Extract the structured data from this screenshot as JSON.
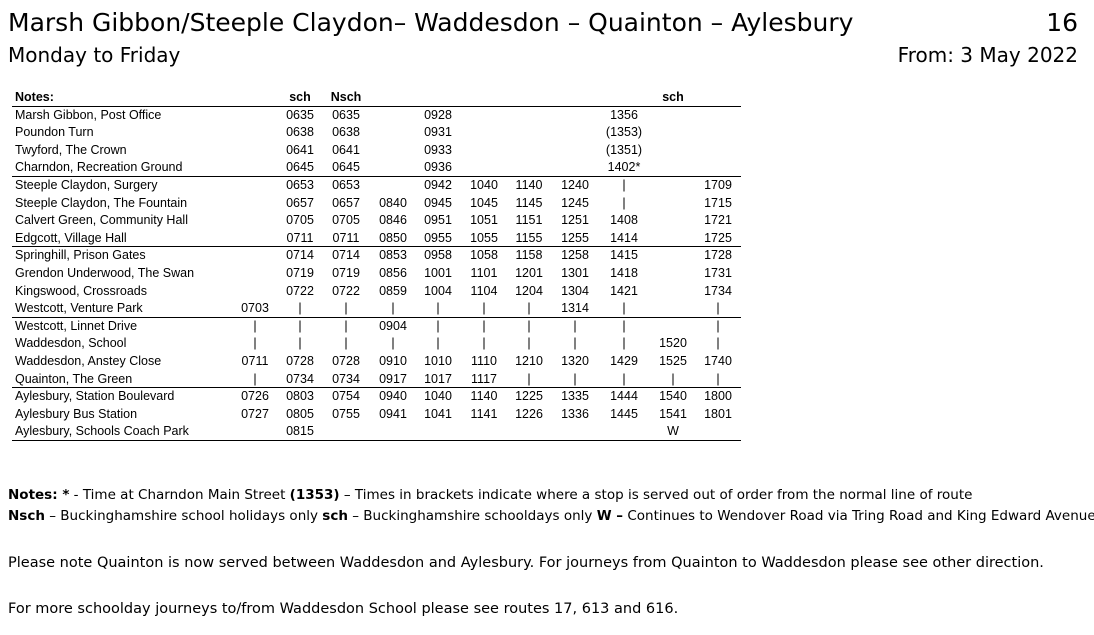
{
  "header": {
    "title": "Marsh Gibbon/Steeple Claydon– Waddesdon – Quainton – Aylesbury",
    "route": "16",
    "days": "Monday to Friday",
    "from": "From: 3 May 2022"
  },
  "table": {
    "notes_label": "Notes:",
    "column_notes": [
      null,
      "sch",
      "Nsch",
      null,
      null,
      null,
      null,
      null,
      null,
      "sch",
      null
    ],
    "groups": [
      {
        "rows": [
          {
            "stop": "Marsh Gibbon, Post Office",
            "times": [
              null,
              "0635",
              "0635",
              null,
              "0928",
              null,
              null,
              null,
              "1356",
              null,
              null
            ]
          },
          {
            "stop": "Poundon Turn",
            "times": [
              null,
              "0638",
              "0638",
              null,
              "0931",
              null,
              null,
              null,
              "(1353)",
              null,
              null
            ]
          },
          {
            "stop": "Twyford, The Crown",
            "times": [
              null,
              "0641",
              "0641",
              null,
              "0933",
              null,
              null,
              null,
              "(1351)",
              null,
              null
            ]
          },
          {
            "stop": "Charndon, Recreation Ground",
            "times": [
              null,
              "0645",
              "0645",
              null,
              "0936",
              null,
              null,
              null,
              "1402*",
              null,
              null
            ]
          }
        ]
      },
      {
        "rows": [
          {
            "stop": "Steeple Claydon, Surgery",
            "times": [
              null,
              "0653",
              "0653",
              null,
              "0942",
              "1040",
              "1140",
              "1240",
              "|",
              null,
              "1709"
            ]
          },
          {
            "stop": "Steeple Claydon, The Fountain",
            "times": [
              null,
              "0657",
              "0657",
              "0840",
              "0945",
              "1045",
              "1145",
              "1245",
              "|",
              null,
              "1715"
            ]
          },
          {
            "stop": "Calvert Green, Community Hall",
            "times": [
              null,
              "0705",
              "0705",
              "0846",
              "0951",
              "1051",
              "1151",
              "1251",
              "1408",
              null,
              "1721"
            ]
          },
          {
            "stop": "Edgcott, Village Hall",
            "times": [
              null,
              "0711",
              "0711",
              "0850",
              "0955",
              "1055",
              "1155",
              "1255",
              "1414",
              null,
              "1725"
            ]
          }
        ]
      },
      {
        "rows": [
          {
            "stop": "Springhill, Prison Gates",
            "times": [
              null,
              "0714",
              "0714",
              "0853",
              "0958",
              "1058",
              "1158",
              "1258",
              "1415",
              null,
              "1728"
            ]
          },
          {
            "stop": "Grendon Underwood, The Swan",
            "times": [
              null,
              "0719",
              "0719",
              "0856",
              "1001",
              "1101",
              "1201",
              "1301",
              "1418",
              null,
              "1731"
            ]
          },
          {
            "stop": "Kingswood, Crossroads",
            "times": [
              null,
              "0722",
              "0722",
              "0859",
              "1004",
              "1104",
              "1204",
              "1304",
              "1421",
              null,
              "1734"
            ]
          },
          {
            "stop": "Westcott, Venture Park",
            "times": [
              "0703",
              "|",
              "|",
              "|",
              "|",
              "|",
              "|",
              "1314",
              "|",
              null,
              "|"
            ]
          }
        ]
      },
      {
        "rows": [
          {
            "stop": "Westcott, Linnet Drive",
            "times": [
              "|",
              "|",
              "|",
              "0904",
              "|",
              "|",
              "|",
              "|",
              "|",
              null,
              "|"
            ]
          },
          {
            "stop": "Waddesdon, School",
            "times": [
              "|",
              "|",
              "|",
              "|",
              "|",
              "|",
              "|",
              "|",
              "|",
              "1520",
              "|"
            ]
          },
          {
            "stop": "Waddesdon, Anstey Close",
            "times": [
              "0711",
              "0728",
              "0728",
              "0910",
              "1010",
              "1110",
              "1210",
              "1320",
              "1429",
              "1525",
              "1740"
            ]
          },
          {
            "stop": "Quainton, The Green",
            "times": [
              "|",
              "0734",
              "0734",
              "0917",
              "1017",
              "1117",
              "|",
              "|",
              "|",
              "|",
              "|"
            ]
          }
        ]
      },
      {
        "rows": [
          {
            "stop": "Aylesbury, Station Boulevard",
            "times": [
              "0726",
              "0803",
              "0754",
              "0940",
              "1040",
              "1140",
              "1225",
              "1335",
              "1444",
              "1540",
              "1800"
            ]
          },
          {
            "stop": "Aylesbury Bus Station",
            "times": [
              "0727",
              "0805",
              "0755",
              "0941",
              "1041",
              "1141",
              "1226",
              "1336",
              "1445",
              "1541",
              "1801"
            ]
          },
          {
            "stop": "Aylesbury, Schools Coach Park",
            "times": [
              null,
              "0815",
              null,
              null,
              null,
              null,
              null,
              null,
              null,
              "W",
              null
            ]
          }
        ]
      }
    ]
  },
  "footer": {
    "notes": [
      [
        {
          "text": "Notes: *",
          "bold": true
        },
        {
          "text": " - Time at Charndon Main Street ",
          "bold": false
        },
        {
          "text": "(1353)",
          "bold": true
        },
        {
          "text": " – Times in brackets indicate where a stop is served out of order from the normal line of route",
          "bold": false
        }
      ],
      [
        {
          "text": "Nsch",
          "bold": true
        },
        {
          "text": " – Buckinghamshire school holidays only ",
          "bold": false
        },
        {
          "text": "sch",
          "bold": true
        },
        {
          "text": " – Buckinghamshire schooldays only ",
          "bold": false
        },
        {
          "text": "W –",
          "bold": true
        },
        {
          "text": " Continues to Wendover Road via Tring Road and King Edward Avenue.",
          "bold": false
        }
      ]
    ],
    "paragraphs": [
      "Please note Quainton is now served between Waddesdon and Aylesbury. For journeys from Quainton to Waddesdon please see other direction.",
      "For more schoolday journeys to/from Waddesdon School please see routes 17, 613 and 616."
    ]
  }
}
